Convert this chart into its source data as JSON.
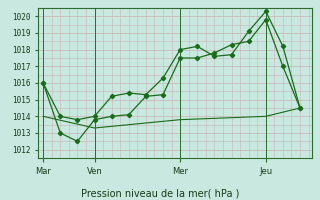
{
  "title": "Pression niveau de la mer( hPa )",
  "background_color": "#c8e8e0",
  "grid_color": "#c8b4b4",
  "line_color": "#1a6b1a",
  "axis_color": "#2d6a2d",
  "ylim": [
    1011.5,
    1020.5
  ],
  "yticks": [
    1012,
    1013,
    1014,
    1015,
    1016,
    1017,
    1018,
    1019,
    1020
  ],
  "xtick_labels": [
    "Mar",
    "Ven",
    "Mer",
    "Jeu"
  ],
  "xtick_positions": [
    0,
    3,
    8,
    13
  ],
  "xlim": [
    -0.3,
    15.7
  ],
  "series1": {
    "x": [
      0,
      1,
      2,
      3,
      4,
      5,
      6,
      7,
      8,
      9,
      10,
      11,
      12,
      13,
      14,
      15
    ],
    "y": [
      1016.0,
      1014.0,
      1013.8,
      1014.0,
      1015.2,
      1015.4,
      1015.3,
      1016.3,
      1018.0,
      1018.2,
      1017.6,
      1017.7,
      1019.1,
      1020.3,
      1018.2,
      1014.5
    ]
  },
  "series2": {
    "x": [
      0,
      1,
      2,
      3,
      4,
      5,
      6,
      7,
      8,
      9,
      10,
      11,
      12,
      13,
      14,
      15
    ],
    "y": [
      1016.0,
      1013.0,
      1012.5,
      1013.8,
      1014.0,
      1014.1,
      1015.2,
      1015.3,
      1017.5,
      1017.5,
      1017.8,
      1018.3,
      1018.5,
      1019.8,
      1017.0,
      1014.5
    ]
  },
  "series3": {
    "x": [
      0,
      3,
      8,
      13,
      15
    ],
    "y": [
      1014.0,
      1013.3,
      1013.8,
      1014.0,
      1014.5
    ]
  },
  "vlines_x": [
    0,
    3,
    8,
    13
  ]
}
